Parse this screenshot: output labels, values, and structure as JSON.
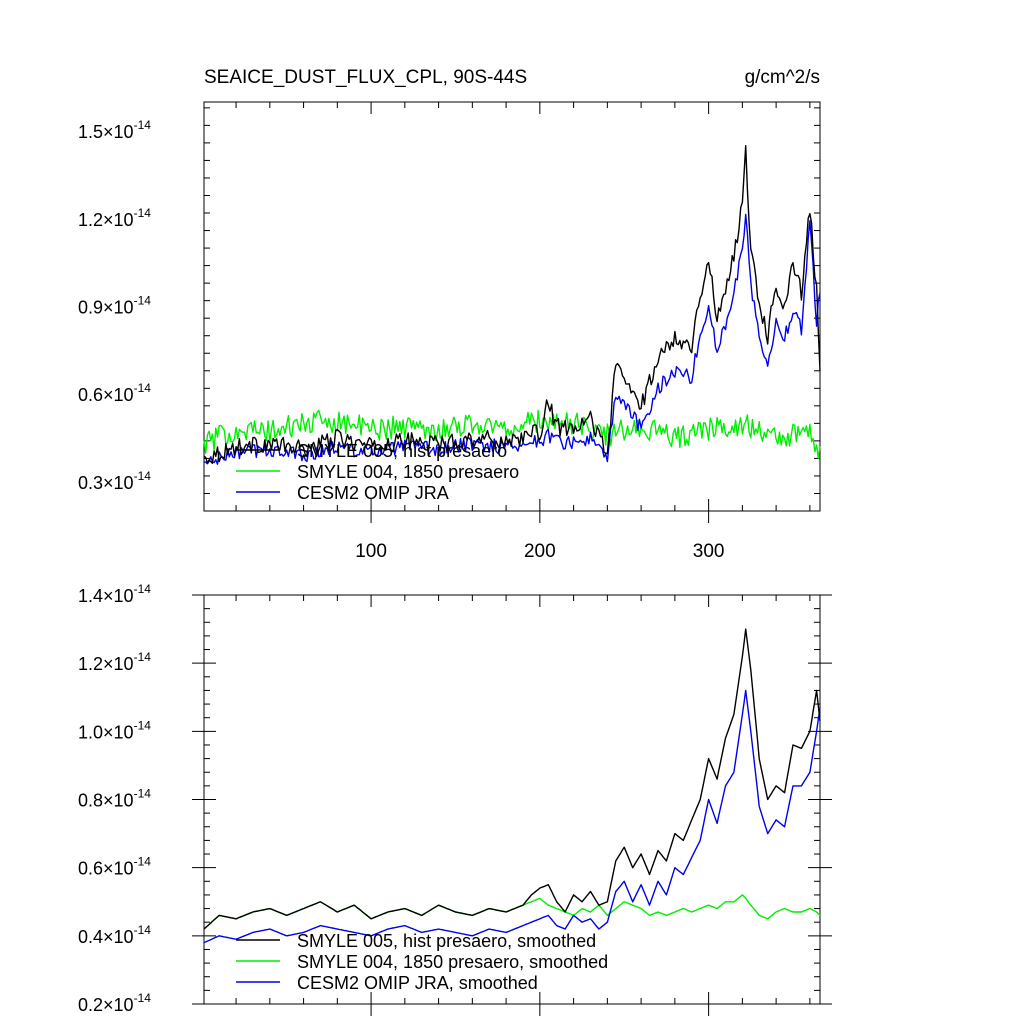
{
  "figure": {
    "title_left": "SEAICE_DUST_FLUX_CPL, 90S-44S",
    "title_right": "g/cm^2/s"
  },
  "chart_data": [
    {
      "type": "line",
      "title": "SEAICE_DUST_FLUX_CPL, 90S-44S",
      "units": "g/cm^2/s",
      "xlim": [
        1,
        366
      ],
      "x_ticks": [
        100,
        200,
        300
      ],
      "ylim": [
        0.2,
        1.6
      ],
      "y_scale_exponent": -14,
      "y_ticks": [
        {
          "value": 0.3,
          "mantissa": "0.3"
        },
        {
          "value": 0.6,
          "mantissa": "0.6"
        },
        {
          "value": 0.9,
          "mantissa": "0.9"
        },
        {
          "value": 1.2,
          "mantissa": "1.2"
        },
        {
          "value": 1.5,
          "mantissa": "1.5"
        }
      ],
      "tick_exponent_label": "-14",
      "legend_position": "bottom-left",
      "series": [
        {
          "name": "SMYLE 005, hist presaero",
          "color": "#000000",
          "x": [
            1,
            20,
            40,
            60,
            80,
            100,
            120,
            140,
            160,
            180,
            200,
            205,
            210,
            220,
            230,
            240,
            245,
            250,
            260,
            270,
            280,
            290,
            295,
            300,
            305,
            310,
            315,
            320,
            322,
            325,
            330,
            335,
            340,
            345,
            350,
            355,
            360,
            364,
            366
          ],
          "y": [
            0.38,
            0.42,
            0.43,
            0.41,
            0.45,
            0.42,
            0.44,
            0.43,
            0.45,
            0.44,
            0.47,
            0.57,
            0.49,
            0.47,
            0.52,
            0.4,
            0.7,
            0.65,
            0.56,
            0.72,
            0.8,
            0.76,
            0.95,
            1.05,
            0.86,
            0.96,
            1.08,
            1.25,
            1.43,
            1.1,
            0.92,
            0.8,
            0.98,
            0.9,
            1.05,
            0.95,
            1.23,
            0.95,
            0.68
          ],
          "y_noise": 0.03
        },
        {
          "name": "SMYLE 004, 1850 presaero",
          "color": "#00ee00",
          "x": [
            1,
            20,
            40,
            60,
            80,
            100,
            120,
            140,
            160,
            180,
            200,
            220,
            240,
            260,
            280,
            300,
            320,
            340,
            360,
            366
          ],
          "y": [
            0.43,
            0.48,
            0.47,
            0.5,
            0.51,
            0.48,
            0.49,
            0.48,
            0.5,
            0.48,
            0.51,
            0.5,
            0.46,
            0.49,
            0.45,
            0.48,
            0.5,
            0.45,
            0.47,
            0.4
          ],
          "y_noise": 0.04
        },
        {
          "name": "CESM2 OMIP JRA",
          "color": "#0000ee",
          "x": [
            1,
            20,
            40,
            60,
            80,
            100,
            120,
            140,
            160,
            180,
            200,
            205,
            210,
            220,
            230,
            240,
            245,
            250,
            260,
            270,
            280,
            290,
            295,
            300,
            305,
            310,
            315,
            320,
            322,
            325,
            330,
            335,
            340,
            345,
            350,
            355,
            360,
            364,
            366
          ],
          "y": [
            0.36,
            0.4,
            0.41,
            0.39,
            0.42,
            0.4,
            0.42,
            0.41,
            0.43,
            0.42,
            0.44,
            0.46,
            0.44,
            0.43,
            0.45,
            0.37,
            0.6,
            0.57,
            0.48,
            0.62,
            0.68,
            0.66,
            0.8,
            0.9,
            0.74,
            0.84,
            0.96,
            1.1,
            1.22,
            0.98,
            0.8,
            0.7,
            0.85,
            0.8,
            0.88,
            0.82,
            1.2,
            0.85,
            0.97
          ],
          "y_noise": 0.025
        }
      ]
    },
    {
      "type": "line",
      "xlim": [
        1,
        366
      ],
      "ylim": [
        0.2,
        1.4
      ],
      "y_scale_exponent": -14,
      "y_ticks": [
        {
          "value": 0.2,
          "mantissa": "0.2"
        },
        {
          "value": 0.4,
          "mantissa": "0.4"
        },
        {
          "value": 0.6,
          "mantissa": "0.6"
        },
        {
          "value": 0.8,
          "mantissa": "0.8"
        },
        {
          "value": 1.0,
          "mantissa": "1.0"
        },
        {
          "value": 1.2,
          "mantissa": "1.2"
        },
        {
          "value": 1.4,
          "mantissa": "1.4"
        }
      ],
      "tick_exponent_label": "-14",
      "legend_position": "bottom-left",
      "series": [
        {
          "name": "SMYLE 005, hist presaero, smoothed",
          "color": "#000000",
          "x": [
            1,
            10,
            20,
            30,
            40,
            50,
            60,
            70,
            80,
            90,
            100,
            110,
            120,
            130,
            140,
            150,
            160,
            170,
            180,
            190,
            195,
            200,
            205,
            210,
            215,
            220,
            225,
            230,
            235,
            240,
            245,
            250,
            255,
            260,
            265,
            270,
            275,
            280,
            285,
            290,
            295,
            300,
            305,
            310,
            315,
            320,
            322,
            325,
            330,
            335,
            340,
            345,
            350,
            355,
            360,
            364,
            366
          ],
          "y": [
            0.42,
            0.46,
            0.45,
            0.47,
            0.48,
            0.46,
            0.48,
            0.5,
            0.47,
            0.49,
            0.45,
            0.47,
            0.48,
            0.46,
            0.49,
            0.47,
            0.46,
            0.48,
            0.47,
            0.49,
            0.52,
            0.54,
            0.55,
            0.5,
            0.47,
            0.52,
            0.5,
            0.53,
            0.49,
            0.5,
            0.62,
            0.66,
            0.6,
            0.64,
            0.58,
            0.65,
            0.62,
            0.7,
            0.68,
            0.74,
            0.8,
            0.92,
            0.86,
            0.98,
            1.05,
            1.22,
            1.3,
            1.18,
            0.92,
            0.8,
            0.84,
            0.82,
            0.96,
            0.95,
            1.0,
            1.12,
            1.03
          ],
          "y_noise": 0
        },
        {
          "name": "SMYLE 004, 1850 presaero, smoothed",
          "color": "#00ee00",
          "x": [
            1,
            10,
            20,
            30,
            40,
            50,
            60,
            70,
            80,
            90,
            100,
            110,
            120,
            130,
            140,
            150,
            160,
            170,
            180,
            190,
            195,
            200,
            205,
            210,
            215,
            220,
            225,
            230,
            235,
            240,
            245,
            250,
            255,
            260,
            265,
            270,
            275,
            280,
            285,
            290,
            295,
            300,
            305,
            310,
            315,
            320,
            322,
            325,
            330,
            335,
            340,
            345,
            350,
            355,
            360,
            364,
            366
          ],
          "y": [
            0.42,
            0.46,
            0.45,
            0.47,
            0.48,
            0.46,
            0.48,
            0.5,
            0.47,
            0.49,
            0.45,
            0.47,
            0.48,
            0.46,
            0.49,
            0.47,
            0.46,
            0.48,
            0.47,
            0.49,
            0.5,
            0.51,
            0.49,
            0.48,
            0.47,
            0.46,
            0.48,
            0.47,
            0.49,
            0.46,
            0.48,
            0.5,
            0.49,
            0.48,
            0.46,
            0.47,
            0.46,
            0.47,
            0.48,
            0.47,
            0.48,
            0.49,
            0.48,
            0.5,
            0.5,
            0.52,
            0.51,
            0.49,
            0.46,
            0.45,
            0.47,
            0.48,
            0.47,
            0.47,
            0.48,
            0.47,
            0.46
          ],
          "y_noise": 0
        },
        {
          "name": "CESM2 OMIP JRA, smoothed",
          "color": "#0000ee",
          "x": [
            1,
            10,
            20,
            30,
            40,
            50,
            60,
            70,
            80,
            90,
            100,
            110,
            120,
            130,
            140,
            150,
            160,
            170,
            180,
            190,
            195,
            200,
            205,
            210,
            215,
            220,
            225,
            230,
            235,
            240,
            245,
            250,
            255,
            260,
            265,
            270,
            275,
            280,
            285,
            290,
            295,
            300,
            305,
            310,
            315,
            320,
            322,
            325,
            330,
            335,
            340,
            345,
            350,
            355,
            360,
            364,
            366
          ],
          "y": [
            0.38,
            0.4,
            0.39,
            0.41,
            0.42,
            0.4,
            0.41,
            0.43,
            0.42,
            0.41,
            0.4,
            0.42,
            0.43,
            0.41,
            0.42,
            0.41,
            0.4,
            0.42,
            0.41,
            0.43,
            0.44,
            0.45,
            0.46,
            0.43,
            0.42,
            0.46,
            0.44,
            0.45,
            0.42,
            0.44,
            0.53,
            0.56,
            0.5,
            0.55,
            0.49,
            0.56,
            0.52,
            0.6,
            0.58,
            0.63,
            0.68,
            0.8,
            0.73,
            0.84,
            0.88,
            1.05,
            1.12,
            1.0,
            0.78,
            0.7,
            0.74,
            0.72,
            0.84,
            0.84,
            0.88,
            1.0,
            1.07
          ],
          "y_noise": 0
        }
      ]
    }
  ]
}
